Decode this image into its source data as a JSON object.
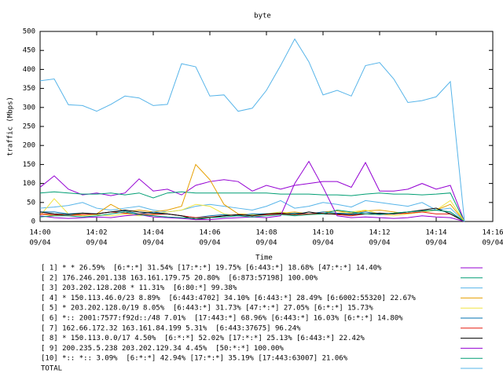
{
  "chart_data": {
    "type": "line",
    "title": "byte",
    "ylabel": "traffic (Mbps)",
    "xlabel": "Time",
    "xlim": [
      "14:00",
      "14:16"
    ],
    "xticks": [
      "14:00",
      "14:02",
      "14:04",
      "14:06",
      "14:08",
      "14:10",
      "14:12",
      "14:14",
      "14:16"
    ],
    "xtick_dates": [
      "09/04",
      "09/04",
      "09/04",
      "09/04",
      "09/04",
      "09/04",
      "09/04",
      "09/04",
      "09/04"
    ],
    "ylim": [
      0,
      500
    ],
    "yticks": [
      0,
      50,
      100,
      150,
      200,
      250,
      300,
      350,
      400,
      450,
      500
    ],
    "x": [
      "14:00:00",
      "14:00:30",
      "14:01:00",
      "14:01:30",
      "14:02:00",
      "14:02:30",
      "14:03:00",
      "14:03:30",
      "14:04:00",
      "14:04:30",
      "14:05:00",
      "14:05:30",
      "14:06:00",
      "14:06:30",
      "14:07:00",
      "14:07:30",
      "14:08:00",
      "14:08:30",
      "14:09:00",
      "14:09:30",
      "14:10:00",
      "14:10:30",
      "14:11:00",
      "14:11:30",
      "14:12:00",
      "14:12:30",
      "14:13:00",
      "14:13:30",
      "14:14:00",
      "14:14:30",
      "14:15:00"
    ],
    "series": [
      {
        "name": "[ 1] * * 26.59%  [6:*:*] 31.54% [17:*:*] 19.75% [6:443:*] 18.68% [47:*:*] 14.40%",
        "color": "#9400d3",
        "values": [
          90,
          120,
          85,
          70,
          75,
          68,
          75,
          112,
          80,
          85,
          70,
          95,
          105,
          110,
          105,
          80,
          95,
          85,
          95,
          100,
          105,
          105,
          90,
          155,
          80,
          80,
          85,
          100,
          85,
          95,
          0
        ]
      },
      {
        "name": "[ 2] 176.246.201.138 163.161.179.75 20.80%  [6:873:57198] 100.00%",
        "color": "#009e73",
        "values": [
          75,
          78,
          75,
          72,
          72,
          75,
          70,
          75,
          62,
          75,
          78,
          75,
          75,
          75,
          75,
          75,
          75,
          72,
          72,
          72,
          70,
          70,
          68,
          72,
          75,
          72,
          72,
          70,
          72,
          75,
          0
        ]
      },
      {
        "name": "[ 3] 203.202.128.208 * 11.31%  [6:80:*] 99.38%",
        "color": "#56b4e9",
        "values": [
          35,
          38,
          42,
          50,
          35,
          30,
          35,
          40,
          30,
          25,
          30,
          40,
          45,
          40,
          35,
          30,
          40,
          55,
          35,
          40,
          50,
          45,
          38,
          55,
          50,
          45,
          40,
          50,
          30,
          35,
          0
        ]
      },
      {
        "name": "[ 4] * 150.113.46.0/23 8.89%  [6:443:4702] 34.10% [6:443:*] 28.49% [6:6002:55320] 22.67%",
        "color": "#e69f00",
        "values": [
          20,
          15,
          20,
          18,
          20,
          45,
          25,
          30,
          25,
          30,
          40,
          150,
          110,
          45,
          20,
          18,
          20,
          22,
          25,
          20,
          25,
          28,
          22,
          28,
          30,
          25,
          20,
          25,
          30,
          45,
          0
        ]
      },
      {
        "name": "[ 5] * 203.202.128.0/19 8.05%  [6:443:*] 31.73% [47:*:*] 27.05% [6:*:*] 15.73%",
        "color": "#f0e442",
        "values": [
          15,
          60,
          20,
          15,
          18,
          15,
          20,
          15,
          20,
          25,
          30,
          45,
          40,
          20,
          15,
          18,
          20,
          25,
          20,
          18,
          20,
          22,
          25,
          30,
          20,
          15,
          20,
          25,
          30,
          55,
          0
        ]
      },
      {
        "name": "[ 6] *:: 2001:7577:f92d::/48 7.01%  [17:443:*] 68.96% [6:443:*] 16.03% [6:*:*] 14.80%",
        "color": "#0072b2",
        "values": [
          25,
          25,
          20,
          22,
          20,
          25,
          28,
          20,
          25,
          20,
          15,
          10,
          15,
          18,
          15,
          20,
          20,
          18,
          22,
          20,
          25,
          22,
          20,
          25,
          20,
          22,
          25,
          28,
          30,
          25,
          0
        ]
      },
      {
        "name": "[ 7] 162.66.172.32 163.161.84.199 5.31%  [6:443:37675] 96.24%",
        "color": "#e51e10",
        "values": [
          20,
          18,
          15,
          18,
          20,
          25,
          22,
          20,
          18,
          20,
          15,
          10,
          12,
          15,
          18,
          15,
          18,
          20,
          18,
          20,
          22,
          18,
          15,
          20,
          18,
          20,
          22,
          25,
          20,
          20,
          0
        ]
      },
      {
        "name": "[ 8] * 150.113.0.0/17 4.50%  [6:*:*] 52.02% [17:*:*] 25.13% [6:443:*] 22.42%",
        "color": "#000000",
        "values": [
          25,
          20,
          18,
          22,
          20,
          25,
          30,
          25,
          22,
          20,
          15,
          5,
          10,
          15,
          18,
          15,
          20,
          22,
          18,
          25,
          20,
          20,
          18,
          20,
          22,
          20,
          25,
          30,
          35,
          20,
          0
        ]
      },
      {
        "name": "[ 9] 200.235.5.238 203.202.129.34 4.45%  [50:*:*] 100.00%",
        "color": "#9400d3",
        "values": [
          15,
          10,
          8,
          10,
          12,
          10,
          15,
          18,
          12,
          10,
          8,
          5,
          5,
          8,
          10,
          12,
          10,
          15,
          100,
          158,
          90,
          15,
          10,
          12,
          10,
          8,
          10,
          15,
          12,
          10,
          0
        ]
      },
      {
        "name": "[10] *:: *:: 3.09%  [6:*:*] 42.94% [17:*:*] 35.19% [17:443:63007] 21.06%",
        "color": "#009e73",
        "values": [
          12,
          15,
          15,
          12,
          15,
          20,
          25,
          18,
          15,
          12,
          10,
          8,
          10,
          12,
          15,
          12,
          15,
          18,
          15,
          18,
          20,
          30,
          25,
          20,
          18,
          22,
          25,
          28,
          30,
          25,
          0
        ]
      },
      {
        "name": "TOTAL",
        "color": "#56b4e9",
        "values": [
          370,
          375,
          307,
          305,
          290,
          308,
          330,
          325,
          305,
          308,
          415,
          407,
          330,
          333,
          290,
          298,
          345,
          410,
          480,
          420,
          333,
          345,
          330,
          410,
          418,
          375,
          313,
          318,
          328,
          368,
          0
        ]
      }
    ]
  }
}
